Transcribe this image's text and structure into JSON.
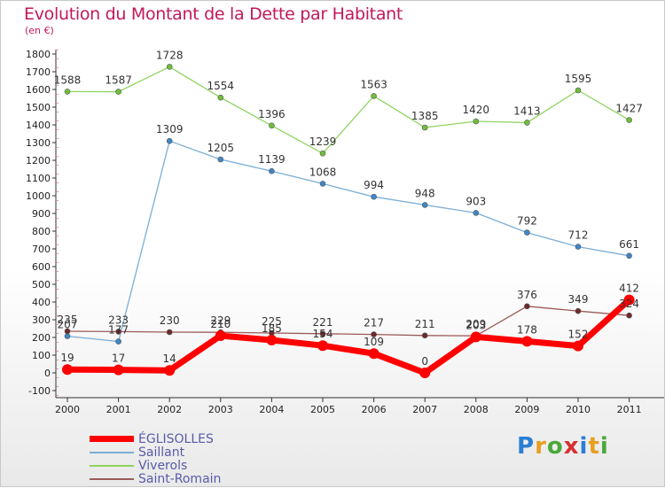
{
  "title": "Evolution du Montant de la Dette par Habitant",
  "unit": "(en €)",
  "logo": {
    "letters": [
      "P",
      "r",
      "o",
      "x",
      "i",
      "t",
      "i"
    ],
    "colors": [
      "#2a7fd4",
      "#e8a020",
      "#4aa83a",
      "#d83030",
      "#2a7fd4",
      "#e8a020",
      "#4aa83a"
    ]
  },
  "chart_data": {
    "type": "line",
    "x": [
      "2000",
      "2001",
      "2002",
      "2003",
      "2004",
      "2005",
      "2006",
      "2007",
      "2008",
      "2009",
      "2010",
      "2011"
    ],
    "ylim": [
      -100,
      1800
    ],
    "yticks": [
      -100,
      0,
      100,
      200,
      300,
      400,
      500,
      600,
      700,
      800,
      900,
      1000,
      1100,
      1200,
      1300,
      1400,
      1500,
      1600,
      1700,
      1800
    ],
    "grid": false,
    "legend_position": "bottom-left",
    "series": [
      {
        "name": "Viverols",
        "color": "#8fd460",
        "marker": "#6fbf3a",
        "width": 1.3,
        "values": [
          1588,
          1587,
          1728,
          1554,
          1396,
          1239,
          1563,
          1385,
          1420,
          1413,
          1595,
          1427
        ],
        "labels": [
          "1588",
          "1587",
          "1728",
          "1554",
          "1396",
          "1239",
          "1563",
          "1385",
          "1420",
          "1413",
          "1595",
          "1427"
        ]
      },
      {
        "name": "Saillant",
        "color": "#7aaed6",
        "marker": "#3f86c8",
        "width": 1.3,
        "values": [
          207,
          177,
          1309,
          1205,
          1139,
          1068,
          994,
          948,
          903,
          792,
          712,
          661
        ],
        "labels": [
          "207",
          "177",
          "1309",
          "1205",
          "1139",
          "1068",
          "994",
          "948",
          "903",
          "792",
          "712",
          "661"
        ]
      },
      {
        "name": "Saint-Romain",
        "color": "#9c5a5a",
        "marker": "#6e2a2a",
        "width": 1.3,
        "values": [
          235,
          233,
          230,
          229,
          225,
          221,
          217,
          211,
          209,
          376,
          349,
          324
        ],
        "labels": [
          "235",
          "233",
          "230",
          "229",
          "225",
          "221",
          "217",
          "211",
          "209",
          "376",
          "349",
          "324"
        ]
      },
      {
        "name": "ÉGLISOLLES",
        "color": "#ff0000",
        "marker": "#ff0000",
        "width": 7,
        "values": [
          19,
          17,
          14,
          210,
          185,
          154,
          109,
          0,
          203,
          178,
          152,
          412
        ],
        "labels": [
          "19",
          "17",
          "14",
          "210",
          "185",
          "154",
          "109",
          "0",
          "203",
          "178",
          "152",
          "412"
        ]
      }
    ],
    "legend_order": [
      "ÉGLISOLLES",
      "Saillant",
      "Viverols",
      "Saint-Romain"
    ]
  }
}
